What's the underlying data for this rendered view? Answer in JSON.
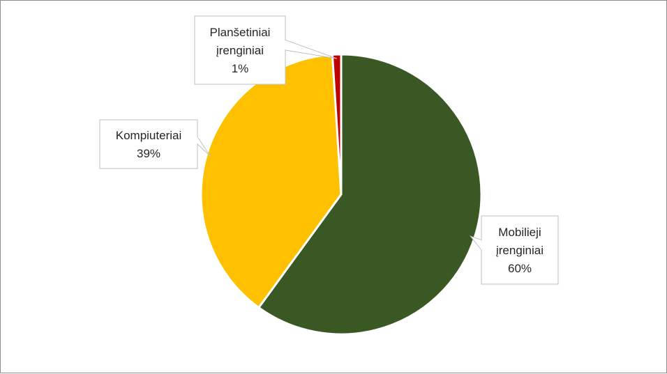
{
  "chart_data": {
    "type": "pie",
    "title": "",
    "slices": [
      {
        "name_lines": [
          "Mobilieji",
          "įrenginiai"
        ],
        "percent_label": "60%",
        "value": 60,
        "color": "#3a5823"
      },
      {
        "name_lines": [
          "Kompiuteriai"
        ],
        "percent_label": "39%",
        "value": 39,
        "color": "#ffc000"
      },
      {
        "name_lines": [
          "Planšetiniai",
          "įrenginiai"
        ],
        "percent_label": "1%",
        "value": 1,
        "color": "#c00000"
      }
    ],
    "start_angle_deg": 0,
    "direction": "clockwise",
    "data_labels": "callouts",
    "legend": "none"
  }
}
